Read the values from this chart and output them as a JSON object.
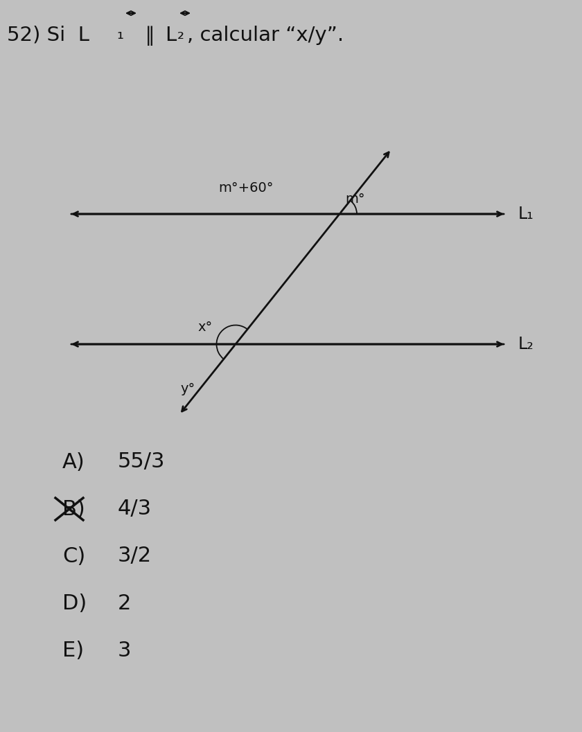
{
  "bg_color": "#c0c0c0",
  "title_fontsize": 21,
  "line1_label": "L₁",
  "line2_label": "L₂",
  "angle_m_plus_60_label": "m°+60°",
  "angle_m_label": "m°",
  "angle_x_label": "x°",
  "angle_y_label": "y°",
  "options": [
    {
      "label": "A)",
      "value": "55/3",
      "crossed": false
    },
    {
      "label": "B)",
      "value": "4/3",
      "crossed": true
    },
    {
      "label": "C)",
      "value": "3/2",
      "crossed": false
    },
    {
      "label": "D)",
      "value": "2",
      "crossed": false
    },
    {
      "label": "E)",
      "value": "3",
      "crossed": false
    }
  ],
  "text_color": "#111111",
  "line_color": "#111111",
  "line_lw": 2.0,
  "arrow_lw": 2.0
}
